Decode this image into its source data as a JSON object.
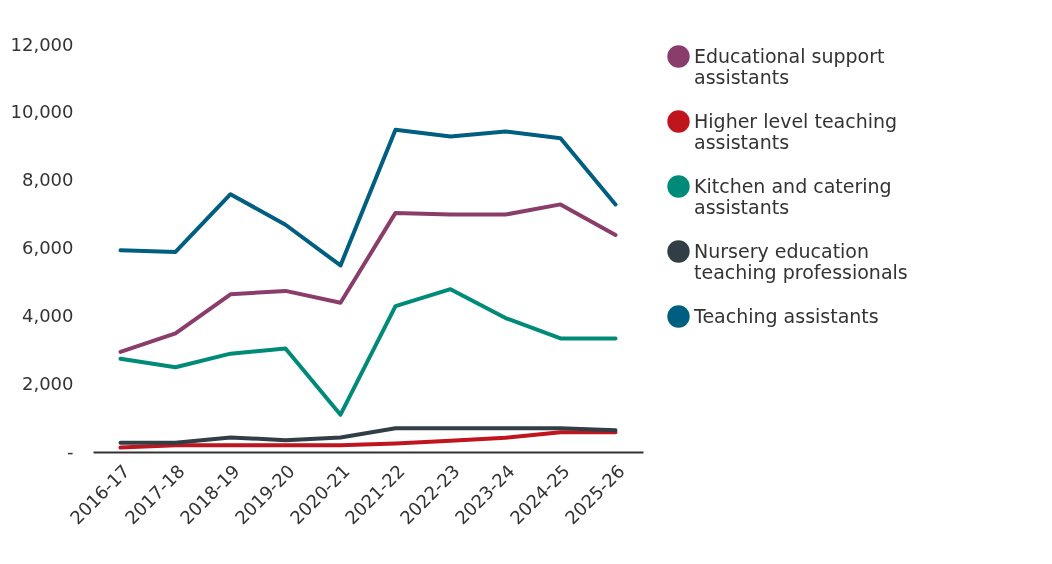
{
  "chart_data": {
    "type": "line",
    "categories": [
      "2016-17",
      "2017-18",
      "2018-19",
      "2019-20",
      "2020-21",
      "2021-22",
      "2022-23",
      "2023-24",
      "2024-25",
      "2025-26"
    ],
    "series": [
      {
        "name": "Educational support assistants",
        "color": "#8a3d6a",
        "values": [
          2950,
          3500,
          4650,
          4750,
          4400,
          7050,
          7000,
          7000,
          7300,
          6400
        ]
      },
      {
        "name": "Higher level teaching assistants",
        "color": "#c0141e",
        "values": [
          130,
          200,
          200,
          200,
          200,
          250,
          330,
          420,
          580,
          580
        ]
      },
      {
        "name": "Kitchen and catering assistants",
        "color": "#008a78",
        "values": [
          2750,
          2500,
          2900,
          3050,
          1100,
          4300,
          4800,
          3950,
          3350,
          3350
        ]
      },
      {
        "name": "Nursery education teaching professionals",
        "color": "#313e45",
        "values": [
          270,
          270,
          430,
          350,
          430,
          700,
          700,
          700,
          700,
          640
        ]
      },
      {
        "name": "Teaching assistants",
        "color": "#005f80",
        "values": [
          5950,
          5900,
          7600,
          6700,
          5500,
          9500,
          9300,
          9450,
          9250,
          7300
        ]
      }
    ],
    "ylim": [
      0,
      12000
    ],
    "yticks": [
      {
        "value": 0,
        "label": "-"
      },
      {
        "value": 2000,
        "label": "2,000"
      },
      {
        "value": 4000,
        "label": "4,000"
      },
      {
        "value": 6000,
        "label": "6,000"
      },
      {
        "value": 8000,
        "label": "8,000"
      },
      {
        "value": 10000,
        "label": "10,000"
      },
      {
        "value": 12000,
        "label": "12,000"
      }
    ],
    "grid": false,
    "legend": "right",
    "marker": "none",
    "line_style": "solid"
  }
}
